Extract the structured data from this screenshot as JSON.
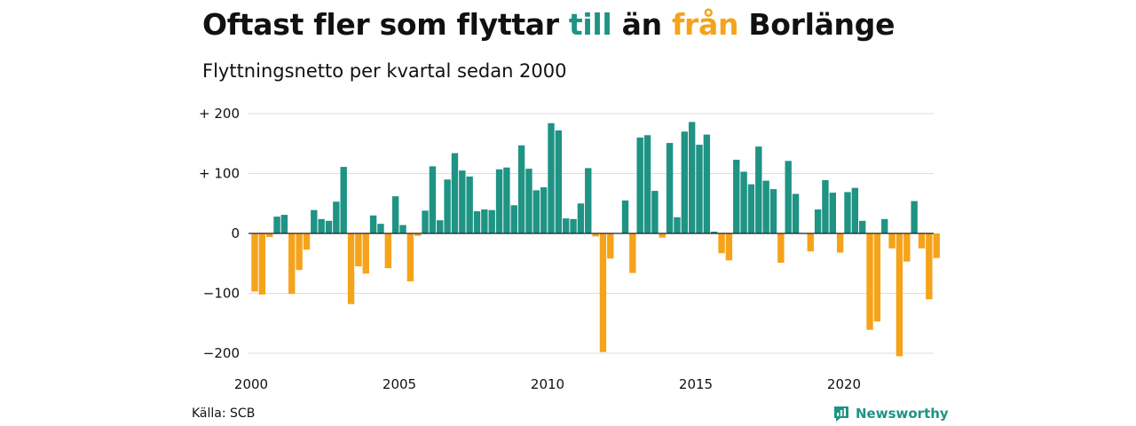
{
  "title": {
    "part1": "Oftast fler som flyttar ",
    "part2": "till",
    "part3": " än ",
    "part4": "från",
    "part5": " Borlänge"
  },
  "subtitle": "Flyttningsnetto per kvartal sedan 2000",
  "source": "Källa: SCB",
  "brand": {
    "name": "Newsworthy",
    "icon": "newsworthy-logo-icon"
  },
  "colors": {
    "positive": "#1f9384",
    "negative": "#f5a31a",
    "grid": "#dddddd",
    "zero": "#222222"
  },
  "chart_data": {
    "type": "bar",
    "ylim": [
      -210,
      210
    ],
    "yticks": [
      200,
      100,
      0,
      -100,
      -200
    ],
    "ytick_labels": [
      "+ 200",
      "+ 100",
      "0",
      "−100",
      "−200"
    ],
    "xticks": [
      2000,
      2005,
      2010,
      2015,
      2020
    ],
    "xtick_labels": [
      "2000",
      "2005",
      "2010",
      "2015",
      "2020"
    ],
    "grid": true,
    "series": [
      {
        "x_start": "2000 Q1",
        "values": [
          -97,
          -102,
          -6,
          28,
          31,
          -101,
          -61,
          -27,
          39,
          24,
          21,
          53,
          111,
          -118,
          -55,
          -67,
          30,
          16,
          -58,
          62,
          14,
          -80,
          -4,
          38,
          112,
          22,
          90,
          134,
          105,
          95,
          37,
          40,
          39,
          107,
          110,
          47,
          147,
          108,
          72,
          77,
          184,
          172,
          25,
          24,
          50,
          109,
          -5,
          -198,
          -42,
          0,
          55,
          -66,
          160,
          164,
          71,
          -7,
          151,
          27,
          170,
          186,
          148,
          165,
          3,
          -33,
          -45,
          123,
          103,
          82,
          145,
          88,
          74,
          -49,
          121,
          66,
          0,
          -30,
          40,
          89,
          68,
          -32,
          69,
          76,
          21,
          -161,
          -147,
          24,
          -25,
          -205,
          -47,
          54,
          -25,
          -110,
          -41
        ]
      }
    ]
  }
}
